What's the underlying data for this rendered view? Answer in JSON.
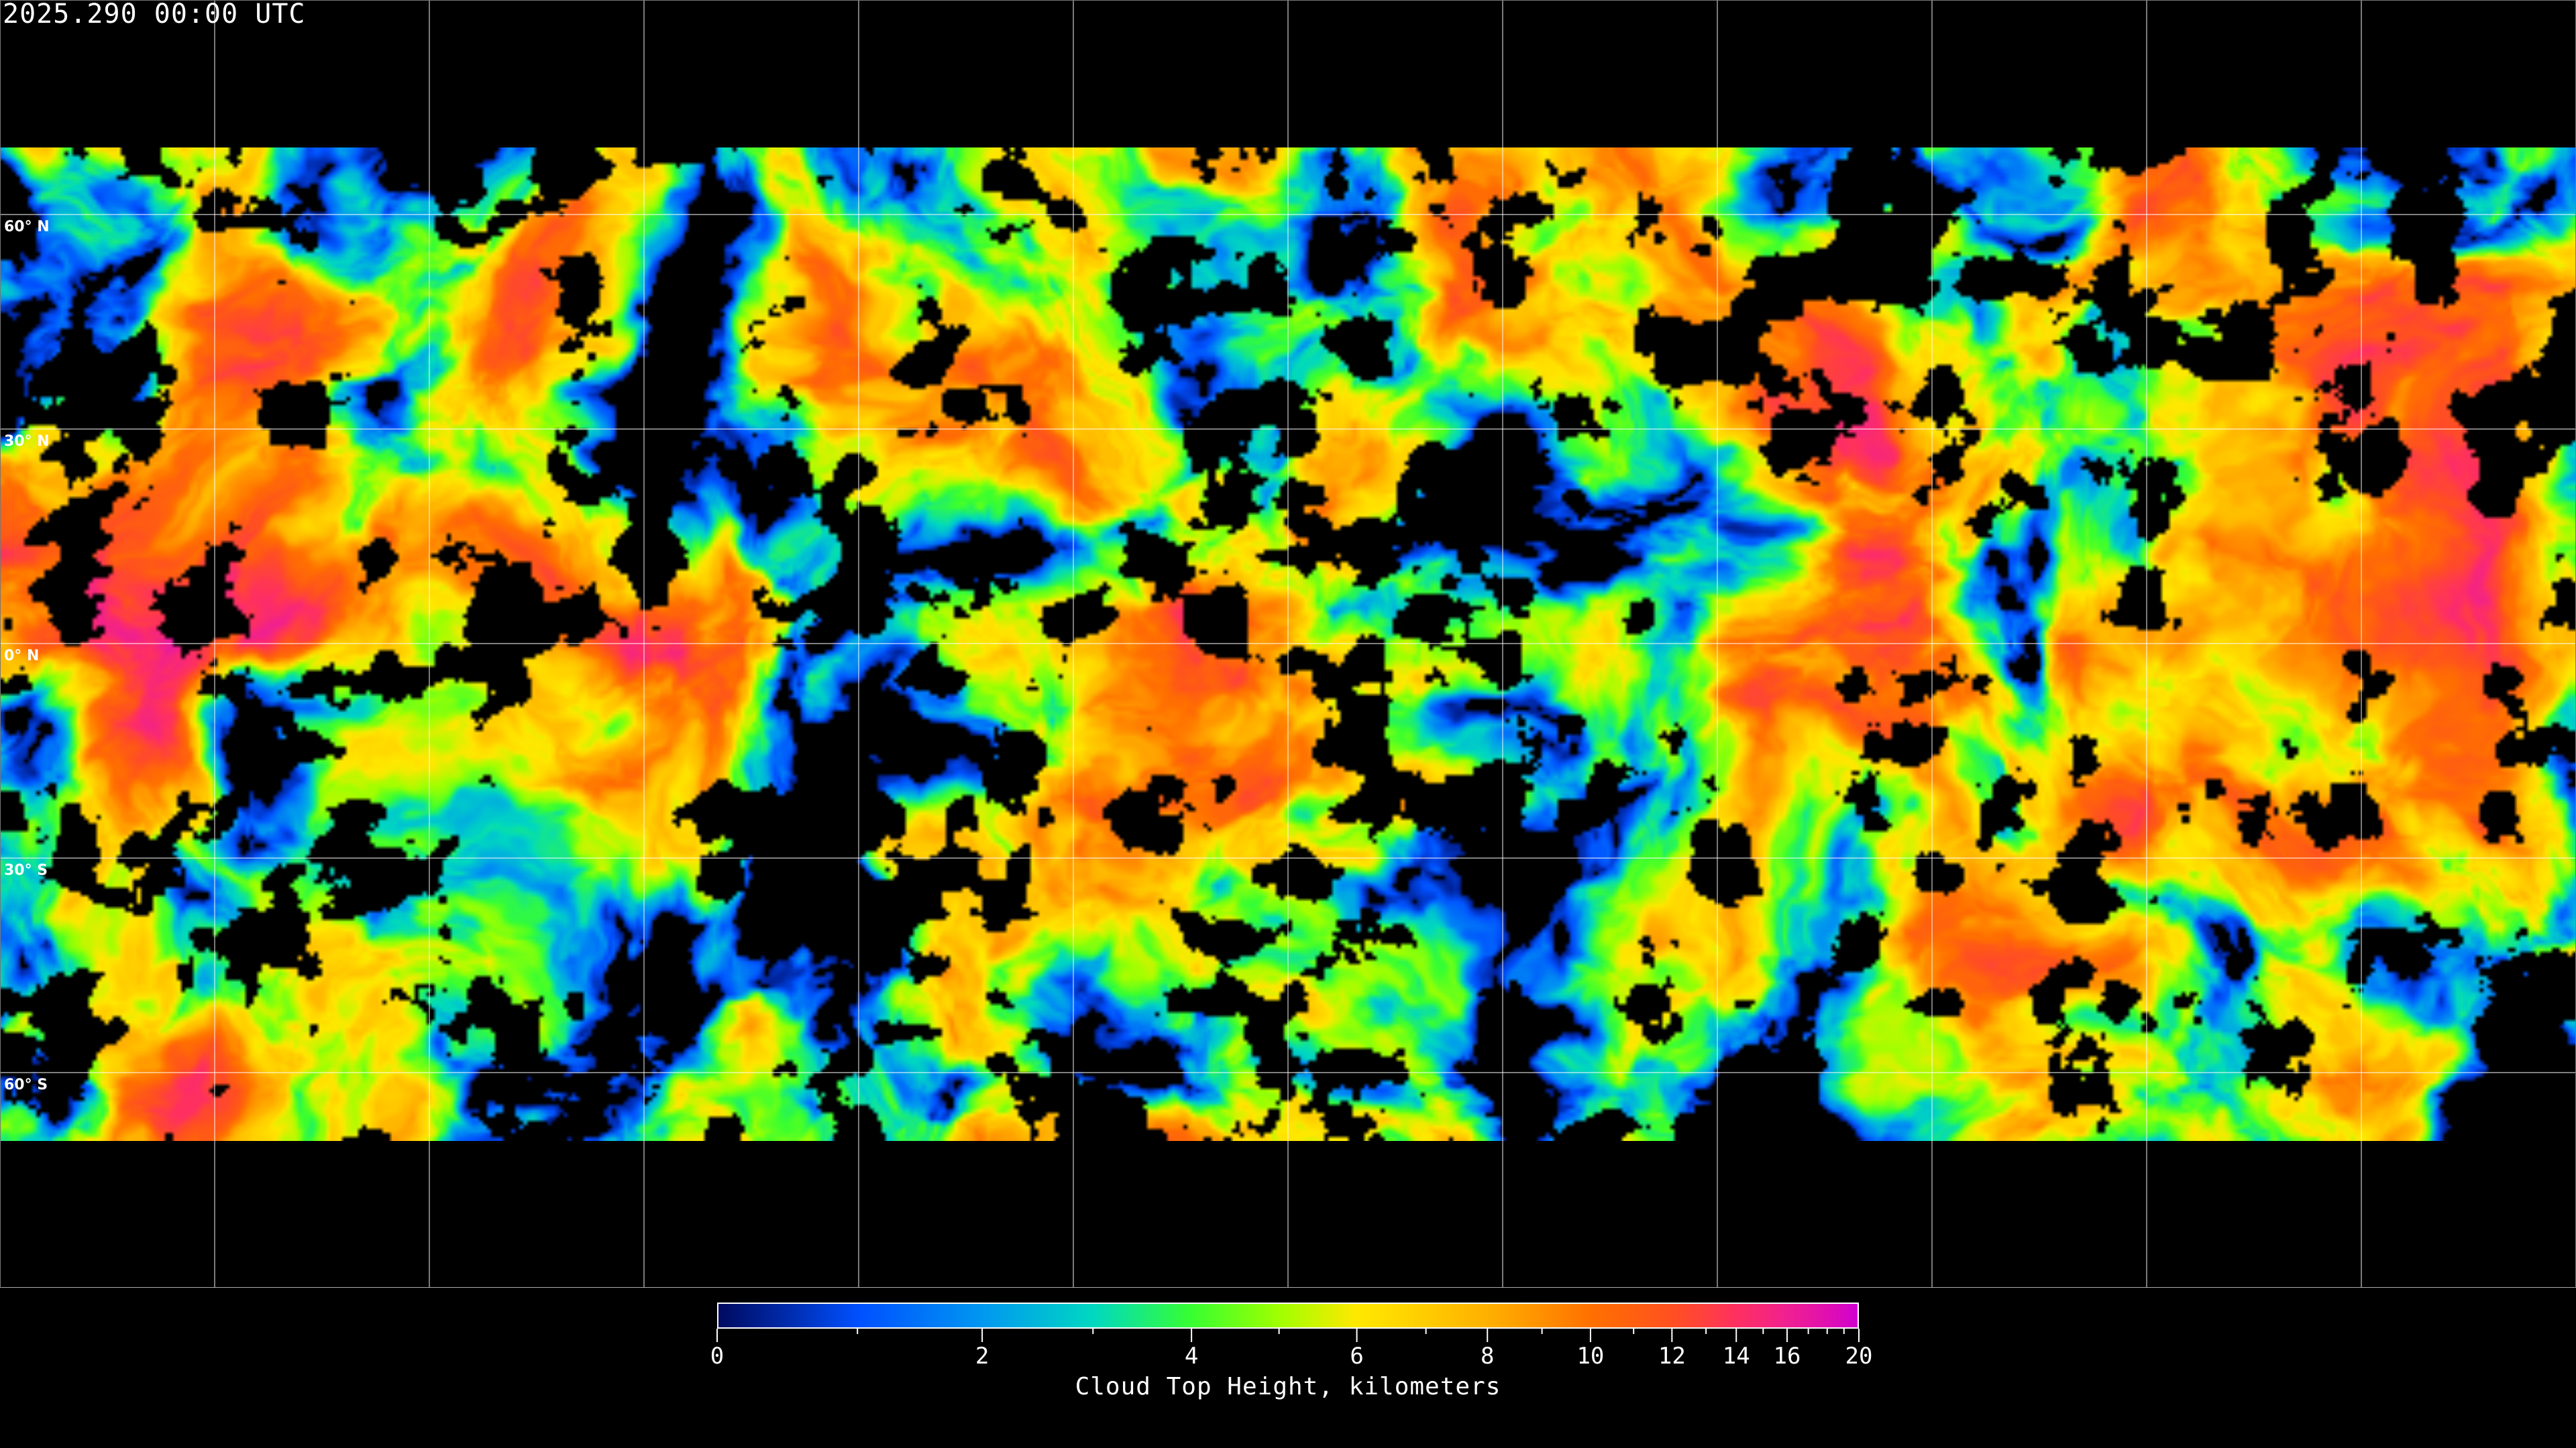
{
  "title": "2025.290 00:00 UTC",
  "map": {
    "projection": "equirectangular",
    "gridline_spacing_degrees": 30,
    "latitude_labels": [
      "60° N",
      "30° N",
      "0° N",
      "30° S",
      "60° S"
    ],
    "latitude_values": [
      60,
      30,
      0,
      -30,
      -60
    ],
    "data_coverage_latitude": [
      70,
      -70
    ]
  },
  "colorbar": {
    "label": "Cloud Top Height, kilometers",
    "range": [
      0,
      20
    ],
    "tick_labels": [
      "0",
      "2",
      "4",
      "6",
      "8",
      "10",
      "12",
      "14",
      "16",
      "20"
    ],
    "tick_values": [
      0,
      2,
      4,
      6,
      8,
      10,
      12,
      14,
      16,
      20
    ],
    "minor_ticks": [
      1,
      3,
      5,
      7,
      9,
      11,
      13,
      15,
      17,
      18,
      19
    ],
    "colors": [
      {
        "value": 0,
        "color": "#000a60"
      },
      {
        "value": 1,
        "color": "#0050ff"
      },
      {
        "value": 2,
        "color": "#0098f0"
      },
      {
        "value": 3,
        "color": "#00d8c0"
      },
      {
        "value": 4,
        "color": "#38ff30"
      },
      {
        "value": 5,
        "color": "#a0ff00"
      },
      {
        "value": 6,
        "color": "#ffe800"
      },
      {
        "value": 8,
        "color": "#ffb000"
      },
      {
        "value": 10,
        "color": "#ff7000"
      },
      {
        "value": 12,
        "color": "#ff5020"
      },
      {
        "value": 14,
        "color": "#ff3060"
      },
      {
        "value": 16,
        "color": "#f02090"
      },
      {
        "value": 20,
        "color": "#d000d0"
      }
    ]
  }
}
